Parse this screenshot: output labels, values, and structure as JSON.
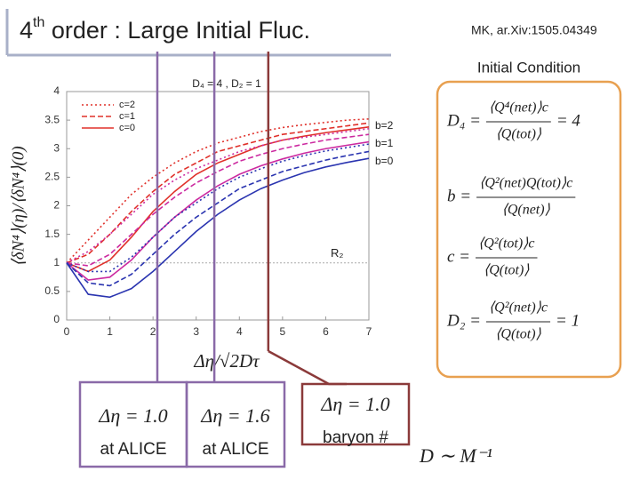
{
  "title": {
    "lead": "4",
    "sup": "th",
    "rest": " order : Large Initial Fluc."
  },
  "citation": "MK, ar.Xiv:1505.04349",
  "initial_condition": {
    "label": "Initial Condition",
    "formulas": [
      {
        "lhs": "D₄ =",
        "num": "⟨Q⁴(net)⟩c",
        "den": "⟨Q(tot)⟩",
        "rhs": "= 4"
      },
      {
        "lhs": "b =",
        "num": "⟨Q²(net)Q(tot)⟩c",
        "den": "⟨Q(net)⟩",
        "rhs": null
      },
      {
        "lhs": "c =",
        "num": "⟨Q²(tot)⟩c",
        "den": "⟨Q(tot)⟩",
        "rhs": null
      },
      {
        "lhs": "D₂ =",
        "num": "⟨Q²(net)⟩c",
        "den": "⟨Q(tot)⟩",
        "rhs": "= 1"
      }
    ]
  },
  "footnote": "D ∼ M⁻¹",
  "chart_data": {
    "type": "line",
    "title": "D₄ = 4 , D₂ = 1",
    "x_label": "Δη/√2Dτ",
    "y_label": "⟨δN⁴⟩(η)/⟨δN⁴⟩(0)",
    "xlim": [
      0,
      7
    ],
    "ylim": [
      0,
      4
    ],
    "xticks": [
      0,
      1,
      2,
      3,
      4,
      5,
      6,
      7
    ],
    "yticks": [
      0,
      0.5,
      1,
      1.5,
      2,
      2.5,
      3,
      3.5,
      4
    ],
    "legend": [
      {
        "label": "c=2",
        "dash": "dotted"
      },
      {
        "label": "c=1",
        "dash": "dashed"
      },
      {
        "label": "c=0",
        "dash": "solid"
      }
    ],
    "x": [
      0,
      0.5,
      1,
      1.5,
      2,
      2.5,
      3,
      3.5,
      4,
      4.5,
      5,
      5.5,
      6,
      6.5,
      7
    ],
    "series": [
      {
        "label": "b=2",
        "color": "#e0302a",
        "lines": [
          [
            1,
            1.4,
            1.8,
            2.2,
            2.5,
            2.75,
            2.95,
            3.1,
            3.2,
            3.3,
            3.37,
            3.42,
            3.46,
            3.5,
            3.52
          ],
          [
            1,
            1.15,
            1.5,
            1.9,
            2.25,
            2.55,
            2.75,
            2.95,
            3.05,
            3.15,
            3.25,
            3.3,
            3.35,
            3.4,
            3.45
          ],
          [
            1,
            0.85,
            1.05,
            1.45,
            1.9,
            2.25,
            2.55,
            2.75,
            2.9,
            3.05,
            3.15,
            3.22,
            3.28,
            3.33,
            3.38
          ]
        ]
      },
      {
        "label": "b=1",
        "color": "#cc2aa0",
        "lines": [
          [
            1,
            1.2,
            1.5,
            1.85,
            2.2,
            2.45,
            2.65,
            2.8,
            2.95,
            3.05,
            3.15,
            3.2,
            3.25,
            3.3,
            3.35
          ],
          [
            1,
            0.95,
            1.15,
            1.5,
            1.85,
            2.15,
            2.4,
            2.6,
            2.78,
            2.9,
            3.0,
            3.08,
            3.15,
            3.2,
            3.25
          ],
          [
            1,
            0.7,
            0.75,
            1.05,
            1.45,
            1.8,
            2.1,
            2.35,
            2.55,
            2.7,
            2.82,
            2.92,
            3.0,
            3.06,
            3.12
          ]
        ]
      },
      {
        "label": "b=0",
        "color": "#2a34b0",
        "lines": [
          [
            1,
            0.85,
            0.85,
            1.1,
            1.45,
            1.8,
            2.05,
            2.3,
            2.5,
            2.65,
            2.78,
            2.88,
            2.96,
            3.02,
            3.08
          ],
          [
            1,
            0.65,
            0.6,
            0.8,
            1.15,
            1.5,
            1.8,
            2.05,
            2.3,
            2.45,
            2.6,
            2.7,
            2.8,
            2.88,
            2.95
          ],
          [
            1,
            0.45,
            0.4,
            0.55,
            0.85,
            1.2,
            1.55,
            1.85,
            2.1,
            2.3,
            2.45,
            2.58,
            2.68,
            2.76,
            2.83
          ]
        ]
      }
    ],
    "reference": {
      "label": "R₂",
      "value": 1
    },
    "markers": [
      {
        "x": 2.1,
        "color": "#8a6aa8",
        "text": [
          "Δη = 1.0",
          "at ALICE"
        ]
      },
      {
        "x": 3.42,
        "color": "#8a6aa8",
        "text": [
          "Δη = 1.6",
          "at ALICE"
        ]
      },
      {
        "x": 4.67,
        "color": "#8b3a3a",
        "text": [
          "Δη = 1.0",
          "baryon #"
        ]
      }
    ]
  }
}
